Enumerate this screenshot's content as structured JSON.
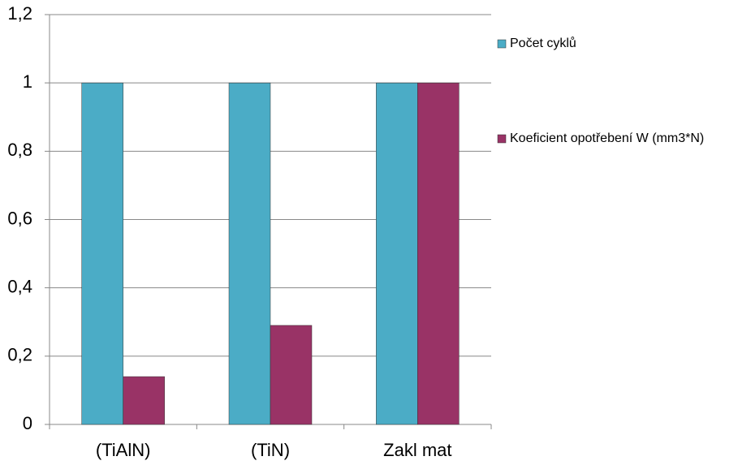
{
  "chart_data": {
    "type": "bar",
    "categories": [
      "(TiAlN)",
      "(TiN)",
      "Zakl mat"
    ],
    "series": [
      {
        "name": "Počet cyklů",
        "color": "#4bacc6",
        "values": [
          1,
          1,
          1
        ]
      },
      {
        "name": "Koeficient opotřebení W (mm3*N)",
        "color": "#993366",
        "values": [
          0.14,
          0.29,
          1
        ]
      }
    ],
    "ylim": [
      0,
      1.2
    ],
    "yticks": [
      0,
      {
        "value": 0.2,
        "label": "0,2"
      },
      {
        "value": 0.4,
        "label": "0,4"
      },
      {
        "value": 0.6,
        "label": "0,6"
      },
      {
        "value": 0.8,
        "label": "0,8"
      },
      1,
      {
        "value": 1.2,
        "label": "1,2"
      }
    ],
    "grid": true,
    "legend": "right"
  }
}
